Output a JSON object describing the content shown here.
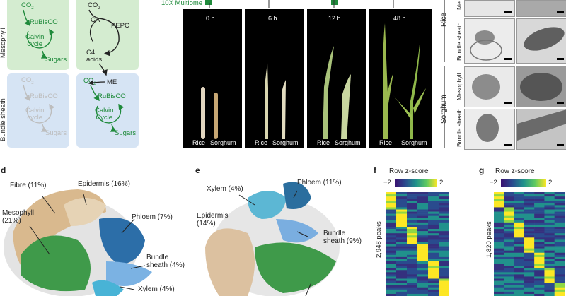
{
  "panel_a": {
    "mesophyll_label": "Mesophyll",
    "bundle_sheath_label": "Bundle sheath",
    "c3": {
      "co2": "CO",
      "co2_sub": "2",
      "rubisco": "RuBisCO",
      "calvin": "Calvin\ncycle",
      "sugars": "Sugars",
      "bs_co2": "CO",
      "bs_co2_sub": "2",
      "bs_rubisco": "RuBisCO",
      "bs_calvin": "Calvin\ncycle",
      "bs_sugars": "Sugars"
    },
    "c4": {
      "co2": "CO",
      "co2_sub": "2",
      "ca": "CA",
      "pepc": "PEPC",
      "c4_acids": "C4\nacids",
      "me": "ME",
      "bs_co2": "CO",
      "bs_co2_sub": "2",
      "bs_rubisco": "RuBisCO",
      "bs_calvin": "Calvin\nCycle",
      "bs_sugars": "Sugars"
    },
    "colors": {
      "mesophyll_bg": "#d4ecd0",
      "bundle_bg": "#d6e4f4",
      "active": "#1f8a3b",
      "inactive": "#bdbdbd"
    }
  },
  "panel_b": {
    "multiome_label": "10X Multiome",
    "timepoints": [
      "0 h",
      "6 h",
      "12 h",
      "48 h"
    ],
    "species_labels": [
      "Rice",
      "Sorghum"
    ]
  },
  "panel_c": {
    "row_labels": [
      "Rice",
      "Sorghum"
    ],
    "rice_sub": [
      "Me",
      "Bundle sheath"
    ],
    "sorghum_sub": [
      "Mesophyll",
      "Bundle sheath"
    ]
  },
  "panel_d": {
    "letter": "d",
    "labels": [
      "Fibre (11%)",
      "Epidermis (16%)",
      "Mesophyll\n(21%)",
      "Phloem (7%)",
      "Bundle\nsheath (4%)",
      "Xylem (4%)"
    ]
  },
  "panel_e": {
    "letter": "e",
    "labels": [
      "Xylem (4%)",
      "Phloem (11%)",
      "Epidermis\n(14%)",
      "Bundle\nsheath (9%)"
    ]
  },
  "panel_f": {
    "letter": "f",
    "title": "Row z-score",
    "ticks": [
      "−2",
      "2"
    ],
    "ylabel": "2,948 peaks"
  },
  "panel_g": {
    "letter": "g",
    "title": "Row z-score",
    "ticks": [
      "−2",
      "2"
    ],
    "ylabel": "1,820 peaks"
  }
}
